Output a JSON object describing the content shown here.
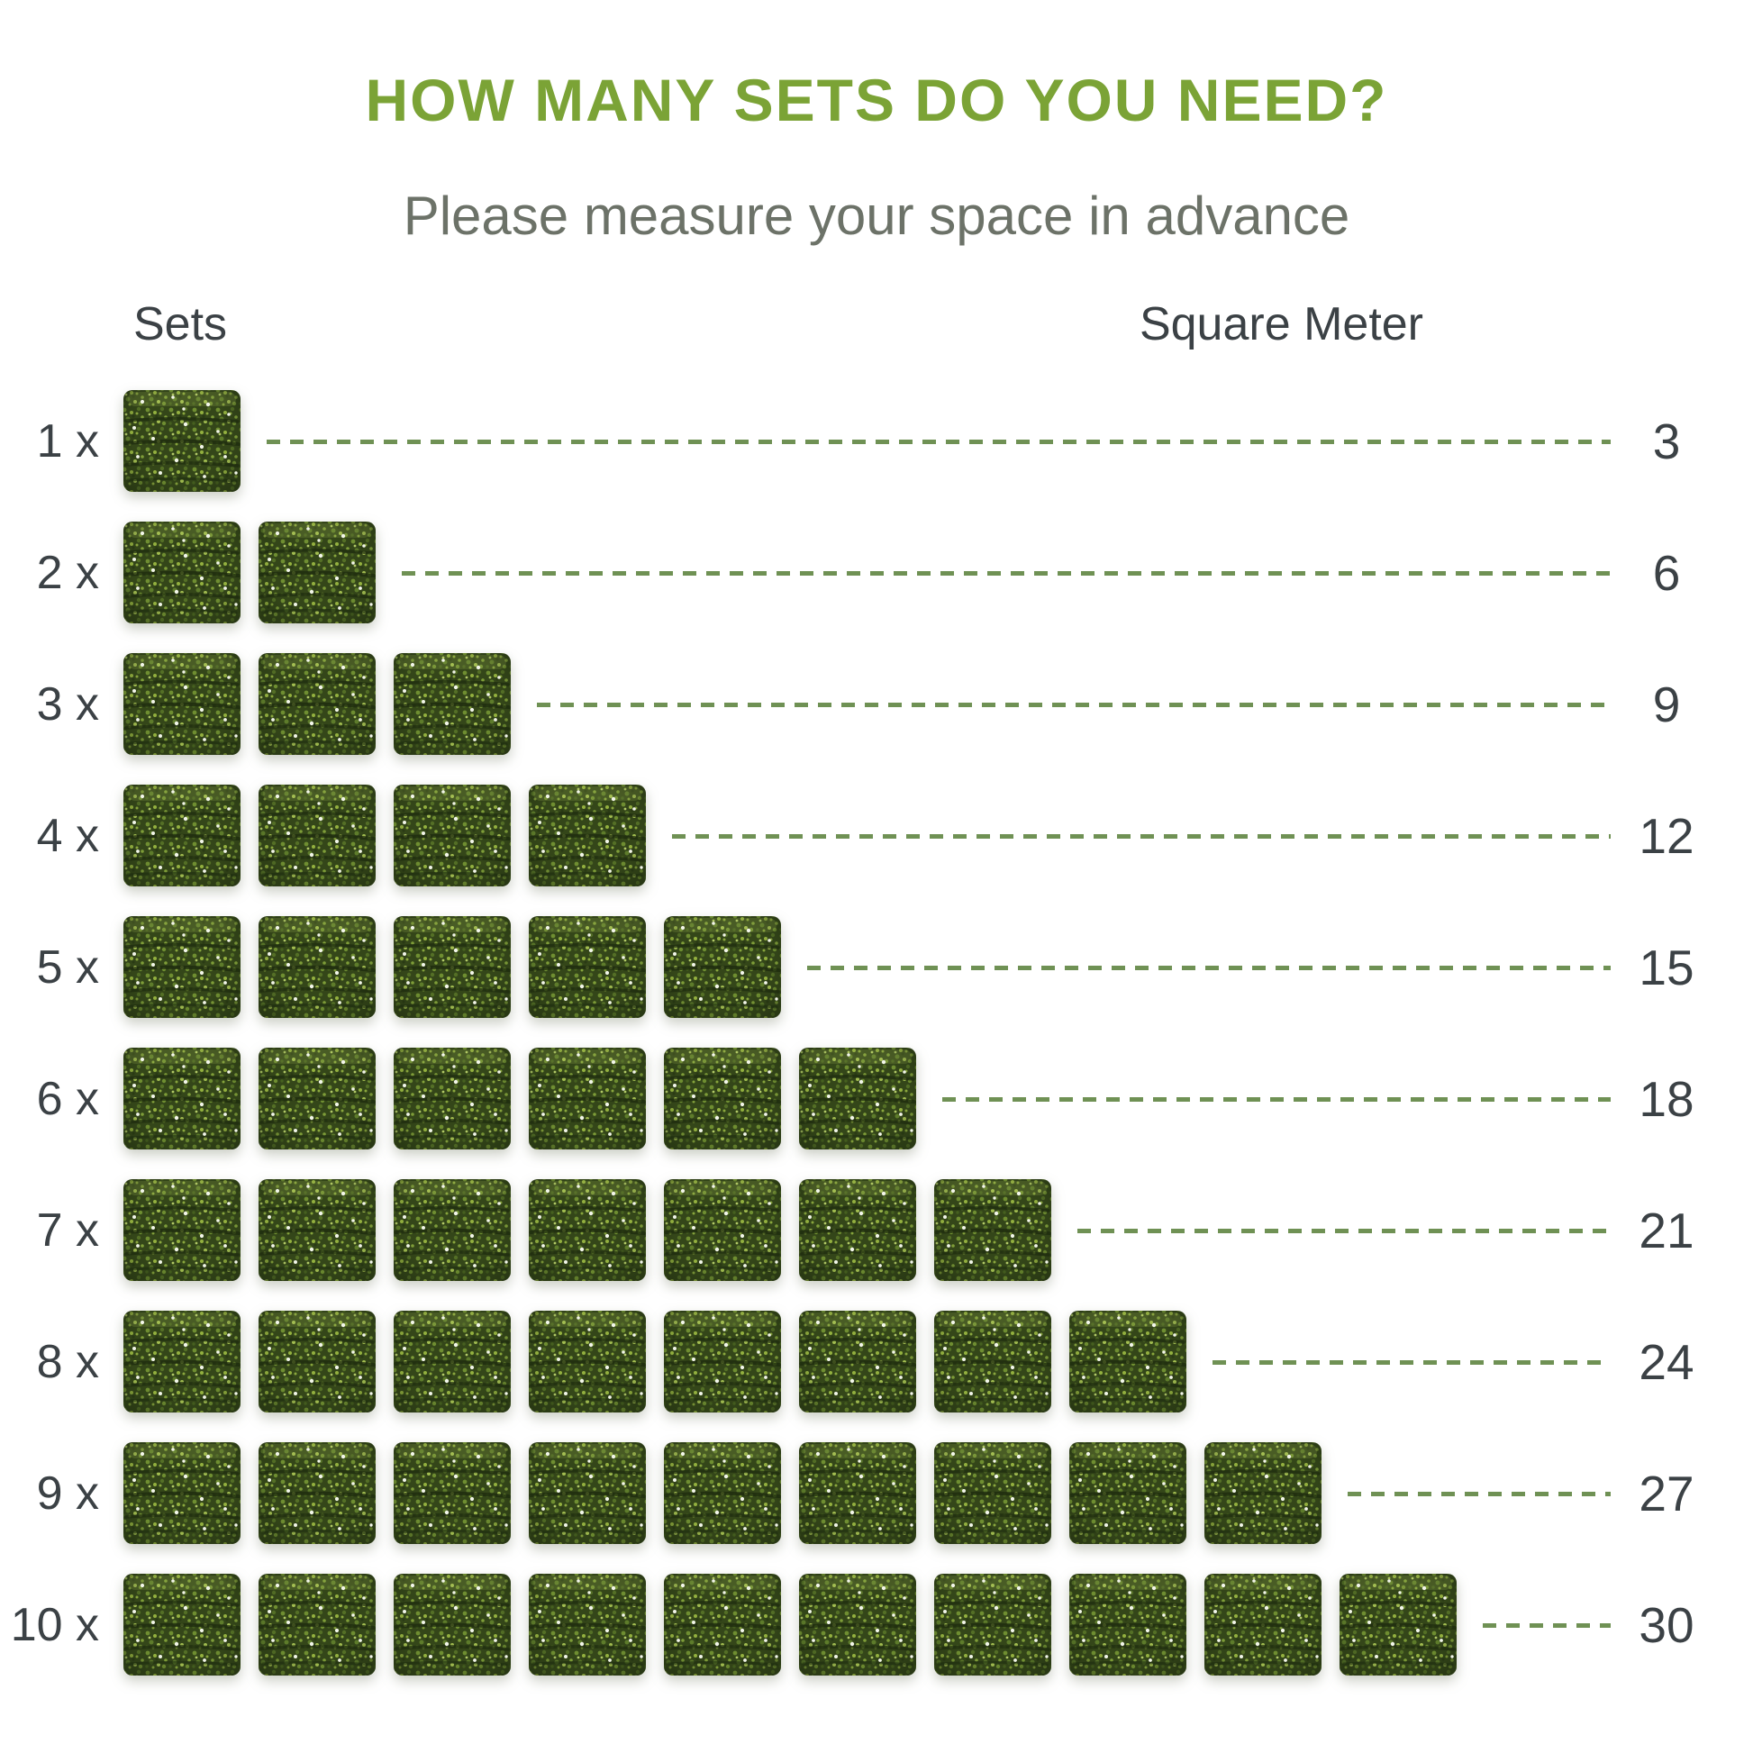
{
  "title": "HOW MANY SETS DO YOU NEED?",
  "subtitle": "Please measure your space in advance",
  "columns": {
    "left": "Sets",
    "right": "Square Meter"
  },
  "rows": [
    {
      "sets_label": "1 x",
      "panel_count": 1,
      "square_meters": "3"
    },
    {
      "sets_label": "2 x",
      "panel_count": 2,
      "square_meters": "6"
    },
    {
      "sets_label": "3 x",
      "panel_count": 3,
      "square_meters": "9"
    },
    {
      "sets_label": "4 x",
      "panel_count": 4,
      "square_meters": "12"
    },
    {
      "sets_label": "5 x",
      "panel_count": 5,
      "square_meters": "15"
    },
    {
      "sets_label": "6 x",
      "panel_count": 6,
      "square_meters": "18"
    },
    {
      "sets_label": "7 x",
      "panel_count": 7,
      "square_meters": "21"
    },
    {
      "sets_label": "8 x",
      "panel_count": 8,
      "square_meters": "24"
    },
    {
      "sets_label": "9 x",
      "panel_count": 9,
      "square_meters": "27"
    },
    {
      "sets_label": "10 x",
      "panel_count": 10,
      "square_meters": "30"
    }
  ],
  "icons": {
    "hedge_block": "hedge-panel-stack-icon"
  },
  "colors": {
    "title_green": "#7ba336",
    "dash_green": "#6f9154",
    "text_dark": "#3b4145",
    "subtitle_gray": "#6c7268",
    "hedge_base_green": "#344619"
  },
  "chart_data": {
    "type": "bar",
    "title": "HOW MANY SETS DO YOU NEED?",
    "subtitle": "Please measure your space in advance",
    "categories": [
      "1 x",
      "2 x",
      "3 x",
      "4 x",
      "5 x",
      "6 x",
      "7 x",
      "8 x",
      "9 x",
      "10 x"
    ],
    "values": [
      3,
      6,
      9,
      12,
      15,
      18,
      21,
      24,
      27,
      30
    ],
    "xlabel": "Sets",
    "ylabel": "Square Meter",
    "legend": false,
    "style": "pictogram rows; one hedge-panel stack icon per set; dashed leader line from icons to square-meter value"
  }
}
